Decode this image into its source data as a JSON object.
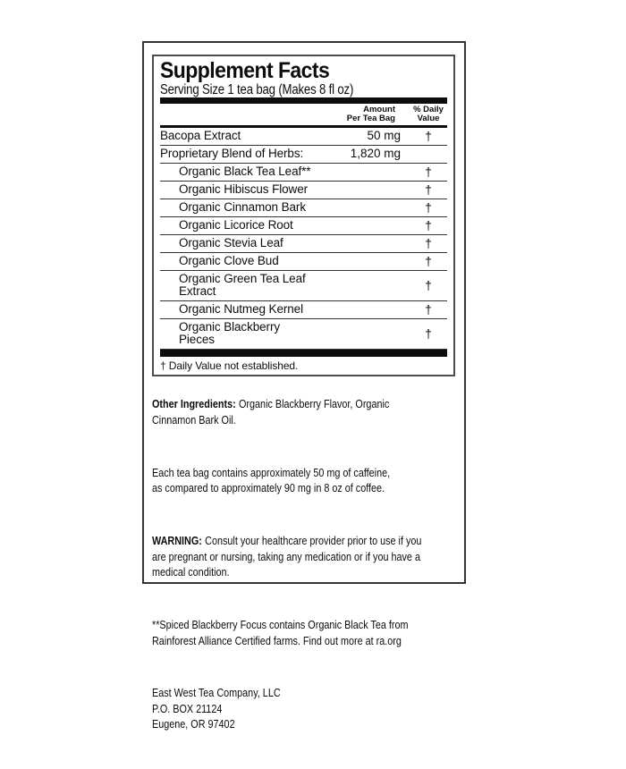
{
  "colors": {
    "ink": "#0d0d0d",
    "background": "#ffffff"
  },
  "panel": {
    "title": "Supplement Facts",
    "serving_size": "Serving Size 1 tea bag (Makes 8 fl oz)",
    "col_amount_header": "Amount\nPer Tea Bag",
    "col_dv_header": "% Daily\nValue",
    "rows": [
      {
        "name": "Bacopa Extract",
        "amount": "50 mg",
        "dv": "†",
        "indent": false
      },
      {
        "name": "Proprietary Blend of Herbs:",
        "amount": "1,820 mg",
        "dv": "",
        "indent": false
      },
      {
        "name": "Organic Black Tea Leaf**",
        "amount": "",
        "dv": "†",
        "indent": true
      },
      {
        "name": "Organic Hibiscus Flower",
        "amount": "",
        "dv": "†",
        "indent": true
      },
      {
        "name": "Organic Cinnamon Bark",
        "amount": "",
        "dv": "†",
        "indent": true
      },
      {
        "name": "Organic Licorice Root",
        "amount": "",
        "dv": "†",
        "indent": true
      },
      {
        "name": "Organic Stevia Leaf",
        "amount": "",
        "dv": "†",
        "indent": true
      },
      {
        "name": "Organic Clove Bud",
        "amount": "",
        "dv": "†",
        "indent": true
      },
      {
        "name": "Organic Green Tea Leaf Extract",
        "amount": "",
        "dv": "†",
        "indent": true
      },
      {
        "name": "Organic Nutmeg Kernel",
        "amount": "",
        "dv": "†",
        "indent": true
      },
      {
        "name": "Organic Blackberry Pieces",
        "amount": "",
        "dv": "†",
        "indent": true
      }
    ],
    "footnote": "† Daily Value not established."
  },
  "body": {
    "other_ingredients_label": "Other Ingredients:",
    "other_ingredients_text": "Organic Blackberry Flavor, Organic\nCinnamon Bark Oil.",
    "caffeine_text": "Each tea bag contains approximately 50 mg of caffeine,\nas compared to approximately 90 mg in 8 oz of coffee.",
    "warning_label": "WARNING:",
    "warning_text": "Consult your healthcare provider prior to use if you\nare pregnant or nursing, taking any medication or if you have a\nmedical condition.",
    "source_note": "**Spiced Blackberry Focus contains Organic Black Tea from\nRainforest Alliance Certified farms. Find out more at ra.org",
    "company": "East West Tea Company, LLC\nP.O. BOX 21124\nEugene, OR 97402"
  }
}
